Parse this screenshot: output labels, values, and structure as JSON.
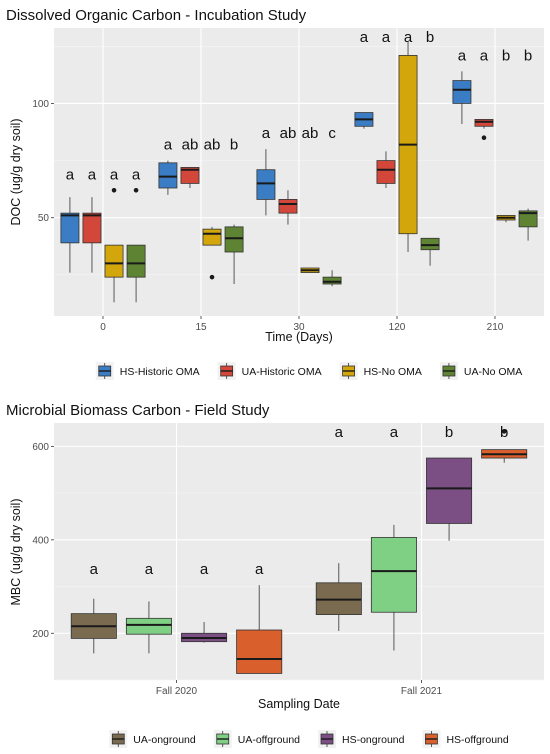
{
  "chart_data": [
    {
      "type": "box",
      "title": "Dissolved Organic Carbon - Incubation Study",
      "xlabel": "Time (Days)",
      "ylabel": "DOC (ug/g dry soil)",
      "ylim": [
        7,
        133
      ],
      "yticks": [
        50,
        100
      ],
      "categories": [
        "0",
        "15",
        "30",
        "120",
        "210"
      ],
      "series": [
        {
          "name": "HS-Historic OMA",
          "color": "#3b7dc4",
          "boxes": [
            {
              "q1": 39,
              "median": 51,
              "q3": 52,
              "lower": 26,
              "upper": 59,
              "outliers": []
            },
            {
              "q1": 63,
              "median": 68,
              "q3": 74,
              "lower": 60,
              "upper": 75,
              "outliers": []
            },
            {
              "q1": 58,
              "median": 65,
              "q3": 71,
              "lower": 51,
              "upper": 80,
              "outliers": []
            },
            {
              "q1": 90,
              "median": 93,
              "q3": 96,
              "lower": 89,
              "upper": 96,
              "outliers": []
            },
            {
              "q1": 100,
              "median": 106,
              "q3": 110,
              "lower": 91,
              "upper": 114,
              "outliers": []
            }
          ]
        },
        {
          "name": "UA-Historic OMA",
          "color": "#d2473a",
          "boxes": [
            {
              "q1": 39,
              "median": 51,
              "q3": 52,
              "lower": 26,
              "upper": 59,
              "outliers": []
            },
            {
              "q1": 65,
              "median": 71,
              "q3": 72,
              "lower": 63,
              "upper": 72,
              "outliers": []
            },
            {
              "q1": 52,
              "median": 56,
              "q3": 58,
              "lower": 47,
              "upper": 62,
              "outliers": []
            },
            {
              "q1": 65,
              "median": 71,
              "q3": 75,
              "lower": 63,
              "upper": 79,
              "outliers": []
            },
            {
              "q1": 90,
              "median": 92,
              "q3": 93,
              "lower": 89,
              "upper": 93,
              "outliers": [
                85
              ]
            }
          ]
        },
        {
          "name": "HS-No OMA",
          "color": "#d3a60c",
          "boxes": [
            {
              "q1": 24,
              "median": 30,
              "q3": 38,
              "lower": 13,
              "upper": 38,
              "outliers": [
                62
              ]
            },
            {
              "q1": 38,
              "median": 43,
              "q3": 45,
              "lower": 38,
              "upper": 46,
              "outliers": [
                24
              ]
            },
            {
              "q1": 26,
              "median": 27,
              "q3": 28,
              "lower": 26,
              "upper": 28,
              "outliers": []
            },
            {
              "q1": 43,
              "median": 82,
              "q3": 121,
              "lower": 35,
              "upper": 127,
              "outliers": []
            },
            {
              "q1": 49,
              "median": 50,
              "q3": 51,
              "lower": 48,
              "upper": 51,
              "outliers": []
            }
          ]
        },
        {
          "name": "UA-No OMA",
          "color": "#5e8333",
          "boxes": [
            {
              "q1": 24,
              "median": 30,
              "q3": 38,
              "lower": 13,
              "upper": 38,
              "outliers": [
                62
              ]
            },
            {
              "q1": 35,
              "median": 41,
              "q3": 46,
              "lower": 21,
              "upper": 47,
              "outliers": []
            },
            {
              "q1": 21,
              "median": 22,
              "q3": 24,
              "lower": 20,
              "upper": 27,
              "outliers": []
            },
            {
              "q1": 36,
              "median": 38,
              "q3": 41,
              "lower": 29,
              "upper": 41,
              "outliers": []
            },
            {
              "q1": 46,
              "median": 52,
              "q3": 53,
              "lower": 40,
              "upper": 54,
              "outliers": []
            }
          ]
        }
      ],
      "letters": [
        [
          "a",
          "a",
          "a",
          "a"
        ],
        [
          "a",
          "ab",
          "ab",
          "b"
        ],
        [
          "a",
          "ab",
          "ab",
          "c"
        ],
        [
          "a",
          "a",
          "a",
          "b"
        ],
        [
          "a",
          "a",
          "b",
          "b"
        ]
      ],
      "legend_position": "bottom",
      "grid": true
    },
    {
      "type": "box",
      "title": "Microbial Biomass Carbon - Field Study",
      "xlabel": "Sampling Date",
      "ylabel": "MBC (ug/g dry soil)",
      "ylim": [
        100,
        650
      ],
      "yticks": [
        200,
        400,
        600
      ],
      "categories": [
        "Fall 2020",
        "Fall 2021"
      ],
      "series": [
        {
          "name": "UA-onground",
          "color": "#7a6a4f",
          "boxes": [
            {
              "q1": 189,
              "median": 215,
              "q3": 242,
              "lower": 157,
              "upper": 274,
              "outliers": []
            },
            {
              "q1": 240,
              "median": 272,
              "q3": 308,
              "lower": 205,
              "upper": 350,
              "outliers": []
            }
          ]
        },
        {
          "name": "UA-offground",
          "color": "#7fd084",
          "boxes": [
            {
              "q1": 198,
              "median": 218,
              "q3": 232,
              "lower": 157,
              "upper": 268,
              "outliers": []
            },
            {
              "q1": 245,
              "median": 333,
              "q3": 405,
              "lower": 163,
              "upper": 432,
              "outliers": []
            }
          ]
        },
        {
          "name": "HS-onground",
          "color": "#7b4f84",
          "boxes": [
            {
              "q1": 182,
              "median": 190,
              "q3": 200,
              "lower": 180,
              "upper": 224,
              "outliers": []
            },
            {
              "q1": 435,
              "median": 510,
              "q3": 575,
              "lower": 398,
              "upper": 575,
              "outliers": []
            }
          ]
        },
        {
          "name": "HS-offground",
          "color": "#d95f2d",
          "boxes": [
            {
              "q1": 114,
              "median": 145,
              "q3": 207,
              "lower": 114,
              "upper": 303,
              "outliers": []
            },
            {
              "q1": 575,
              "median": 583,
              "q3": 593,
              "lower": 565,
              "upper": 593,
              "outliers": [
                632
              ]
            }
          ]
        }
      ],
      "letters": [
        [
          "a",
          "a",
          "a",
          "a"
        ],
        [
          "a",
          "a",
          "b",
          "b"
        ]
      ],
      "legend_position": "bottom",
      "grid": true
    }
  ]
}
